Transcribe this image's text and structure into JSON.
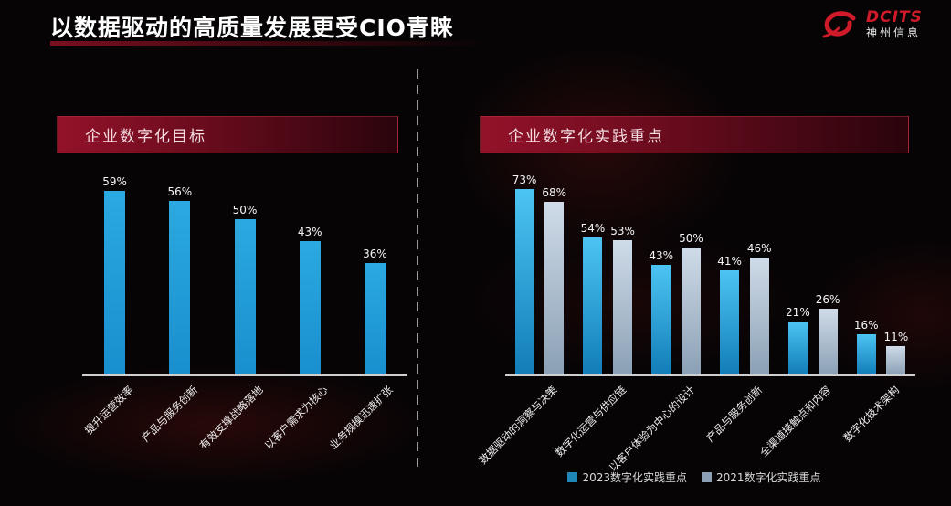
{
  "page": {
    "title": "以数据驱动的高质量发展更受CIO青睐",
    "logo": {
      "brand": "DCITS",
      "company": "神州信息",
      "icon": "swirl-comet-icon",
      "brand_color": "#cf1a2a"
    }
  },
  "colors": {
    "background": "#060405",
    "banner_red": "#93122a",
    "bar_blue": "#1e9cd8",
    "bar_gray": "#aebfd2",
    "axis_line": "#cfcfcf",
    "text": "#ffffff"
  },
  "chart_data": [
    {
      "type": "bar",
      "title": "企业数字化目标",
      "categories": [
        "提升运营效率",
        "产品与服务创新",
        "有效支撑战略落地",
        "以客户需求为核心",
        "业务规模迅速扩张"
      ],
      "values": [
        59,
        56,
        50,
        43,
        36
      ],
      "labels": [
        "59%",
        "56%",
        "50%",
        "43%",
        "36%"
      ],
      "bar_color_top": "#2ba9e0",
      "bar_color_bottom": "#188fce",
      "xlabel": "",
      "ylabel": "",
      "ylim": [
        0,
        65
      ],
      "grid": false,
      "data_labels": true,
      "tick_label_rotation": 45
    },
    {
      "type": "bar",
      "title": "企业数字化实践重点",
      "categories": [
        "数据驱动的洞察与决策",
        "数字化运营与供应链",
        "以客户体验为中心的设计",
        "产品与服务创新",
        "全渠道接触点和内容",
        "数字化技术架构"
      ],
      "series": [
        {
          "name": "2023数字化实践重点",
          "values": [
            73,
            54,
            43,
            41,
            21,
            16
          ],
          "labels": [
            "73%",
            "54%",
            "43%",
            "41%",
            "21%",
            "16%"
          ],
          "color_top": "#4cc4f2",
          "color_bottom": "#127db8",
          "legend_color": "#1f86b8"
        },
        {
          "name": "2021数字化实践重点",
          "values": [
            68,
            53,
            50,
            46,
            26,
            11
          ],
          "labels": [
            "68%",
            "53%",
            "50%",
            "46%",
            "26%",
            "11%"
          ],
          "color_top": "#cfdbe8",
          "color_bottom": "#8ba0b5",
          "legend_color": "#8ba0b5"
        }
      ],
      "xlabel": "",
      "ylabel": "",
      "ylim": [
        0,
        80
      ],
      "grid": false,
      "data_labels": true,
      "legend_position": "bottom",
      "tick_label_rotation": 45
    }
  ]
}
